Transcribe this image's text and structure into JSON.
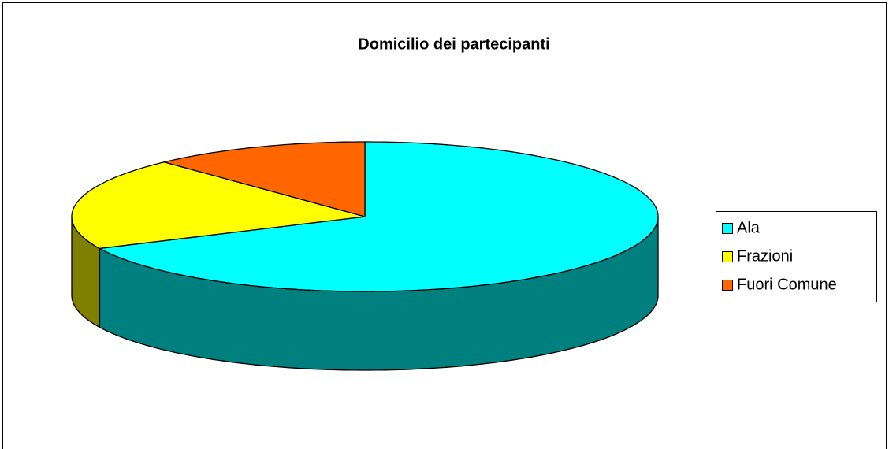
{
  "chart_data": {
    "type": "pie3d",
    "title": "Domicilio dei partecipanti",
    "categories": [
      "Ala",
      "Frazioni",
      "Fuori Comune"
    ],
    "values": [
      68,
      20,
      12
    ],
    "colors": [
      "#00ffff",
      "#ffff00",
      "#ff6600"
    ],
    "legend": "right"
  }
}
